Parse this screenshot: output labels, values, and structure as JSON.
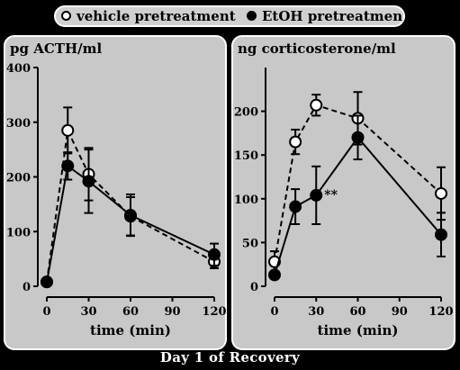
{
  "legend": {
    "vehicle_label": "vehicle pretreatment",
    "etoh_label": "EtOH pretreatment"
  },
  "footer": "Day 1 of Recovery",
  "colors": {
    "background": "#000000",
    "panel": "#c8c8c8",
    "open_marker": "#ffffff",
    "filled_marker": "#000000"
  },
  "chart_data": [
    {
      "type": "line",
      "title": "pg ACTH/ml",
      "xlabel": "time (min)",
      "ylabel": "",
      "x": [
        0,
        15,
        30,
        60,
        120
      ],
      "xticks": [
        0,
        30,
        60,
        90,
        120
      ],
      "yticks": [
        0,
        100,
        200,
        300,
        400
      ],
      "xlim": [
        0,
        120
      ],
      "ylim": [
        0,
        400
      ],
      "grid": false,
      "series": [
        {
          "name": "vehicle pretreatment",
          "marker": "open",
          "line": "dashed",
          "values": [
            8,
            285,
            205,
            128,
            45
          ],
          "errors": [
            0,
            42,
            48,
            35,
            12
          ]
        },
        {
          "name": "EtOH pretreatment",
          "marker": "filled",
          "line": "solid",
          "values": [
            8,
            220,
            192,
            130,
            58
          ],
          "errors": [
            0,
            25,
            58,
            38,
            20
          ]
        }
      ],
      "annotations": []
    },
    {
      "type": "line",
      "title": "ng corticosterone/ml",
      "xlabel": "time (min)",
      "ylabel": "",
      "x": [
        0,
        15,
        30,
        60,
        120
      ],
      "xticks": [
        0,
        30,
        60,
        90,
        120
      ],
      "yticks": [
        0,
        50,
        100,
        150,
        200
      ],
      "xlim": [
        0,
        120
      ],
      "ylim": [
        0,
        250
      ],
      "grid": false,
      "series": [
        {
          "name": "vehicle pretreatment",
          "marker": "open",
          "line": "dashed",
          "values": [
            28,
            165,
            207,
            192,
            106
          ],
          "errors": [
            12,
            14,
            12,
            30,
            30
          ]
        },
        {
          "name": "EtOH pretreatment",
          "marker": "filled",
          "line": "solid",
          "values": [
            13,
            91,
            104,
            170,
            59
          ],
          "errors": [
            0,
            20,
            33,
            25,
            25
          ]
        }
      ],
      "annotations": [
        {
          "text": "**",
          "x": 30,
          "series": 1
        }
      ]
    }
  ]
}
